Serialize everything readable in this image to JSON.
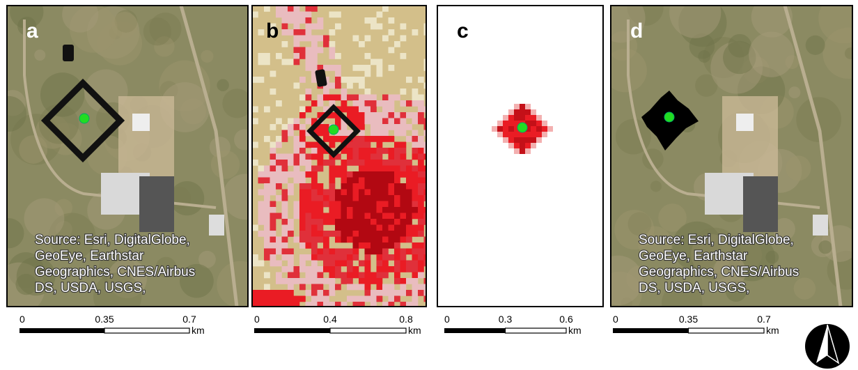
{
  "panels": [
    {
      "label": "a",
      "source": [
        "Source: Esri, DigitalGlobe,",
        "GeoEye, Earthstar",
        "Geographics, CNES/Airbus",
        "DS, USDA, USGS,"
      ],
      "scale": {
        "ticks": [
          "0",
          "0.35",
          "0.7"
        ],
        "unit": "km"
      }
    },
    {
      "label": "b",
      "scale": {
        "ticks": [
          "0",
          "0.4",
          "0.8"
        ],
        "unit": "km"
      }
    },
    {
      "label": "c",
      "scale": {
        "ticks": [
          "0",
          "0.3",
          "0.6"
        ],
        "unit": "km"
      }
    },
    {
      "label": "d",
      "source": [
        "Source: Esri, DigitalGlobe,",
        "GeoEye, Earthstar",
        "Geographics, CNES/Airbus",
        "DS, USDA, USGS,"
      ],
      "scale": {
        "ticks": [
          "0",
          "0.35",
          "0.7"
        ],
        "unit": "km"
      }
    }
  ]
}
